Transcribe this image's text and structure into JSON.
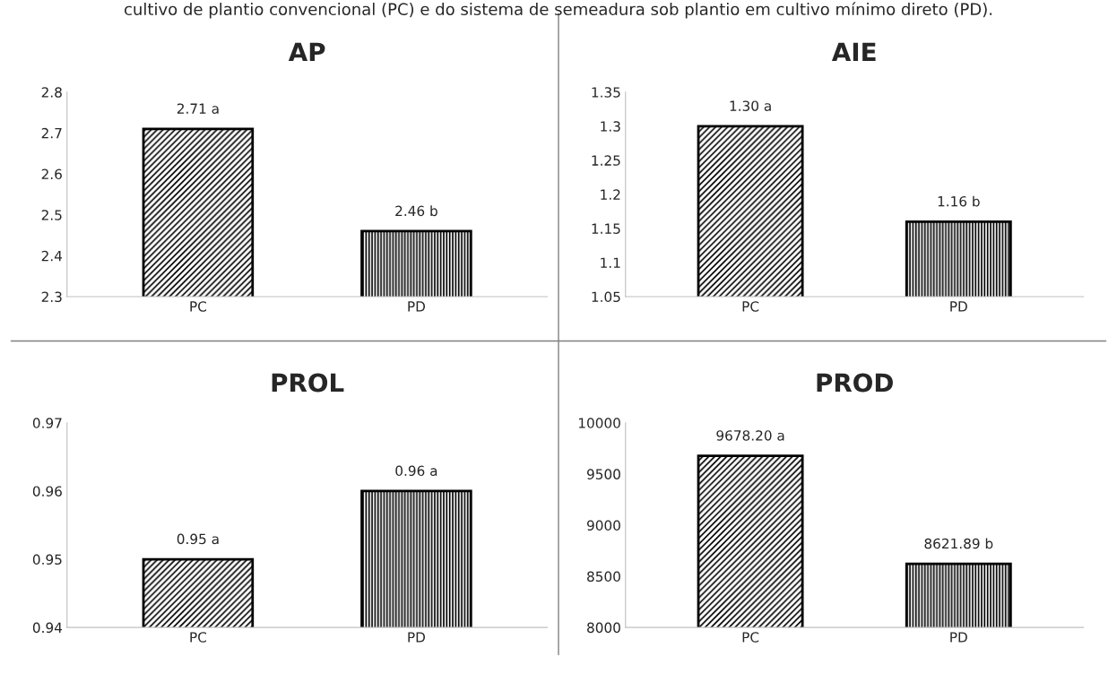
{
  "chart_data": [
    {
      "type": "bar",
      "title": "AP",
      "categories": [
        "PC",
        "PD"
      ],
      "values": [
        2.71,
        2.46
      ],
      "value_labels": [
        "2.71 a",
        "2.46 b"
      ],
      "colors": [
        "#000000",
        "#000000"
      ],
      "ylim": [
        2.3,
        2.8
      ],
      "yticks": [
        2.3,
        2.4,
        2.5,
        2.6,
        2.7,
        2.8
      ],
      "grid": false,
      "annotations": [
        "cultivo de plantio convencional (PC) e do sistema de semeadura sob plantio em cultivo mínimo direto (PD)."
      ]
    },
    {
      "type": "bar",
      "title": "AIE",
      "categories": [
        "PC",
        "PD"
      ],
      "values": [
        1.3,
        1.16
      ],
      "value_labels": [
        "1.30 a",
        "1.16 b"
      ],
      "colors": [
        "#000000",
        "#000000"
      ],
      "ylim": [
        1.05,
        1.35
      ],
      "yticks": [
        1.05,
        1.1,
        1.15,
        1.2,
        1.25,
        1.3,
        1.35
      ],
      "grid": false
    },
    {
      "type": "bar",
      "title": "PROL",
      "categories": [
        "PC",
        "PD"
      ],
      "values": [
        0.95,
        0.96
      ],
      "value_labels": [
        "0.95 a",
        "0.96 a"
      ],
      "colors": [
        "#000000",
        "#000000"
      ],
      "ylim": [
        0.94,
        0.97
      ],
      "yticks": [
        0.94,
        0.95,
        0.96,
        0.97
      ],
      "grid": false
    },
    {
      "type": "bar",
      "title": "PROD",
      "categories": [
        "PC",
        "PD"
      ],
      "values": [
        9678.2,
        8621.89
      ],
      "value_labels": [
        "9678.20 a",
        "8621.89 b"
      ],
      "colors": [
        "#000000",
        "#000000"
      ],
      "ylim": [
        8000,
        10000
      ],
      "yticks": [
        8000,
        8500,
        9000,
        9500,
        10000
      ],
      "grid": false
    }
  ]
}
